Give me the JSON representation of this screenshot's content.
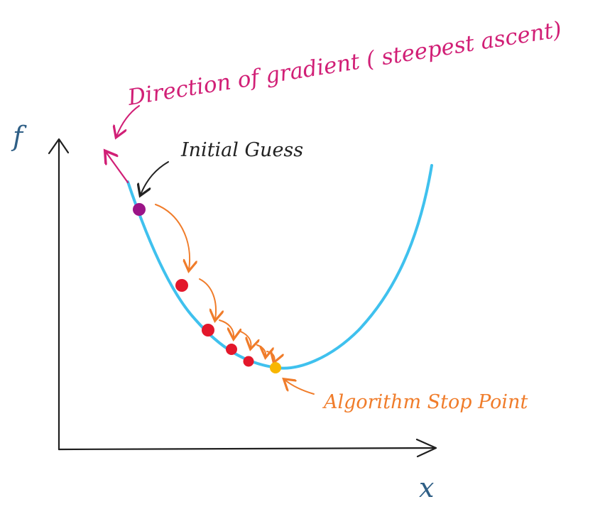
{
  "labels": {
    "gradient_direction": "Direction of gradient ( steepest ascent)",
    "initial_guess": "Initial Guess",
    "stop_point": "Algorithm Stop Point",
    "y_axis": "f",
    "x_axis": "x"
  },
  "colors": {
    "curve": "#3fc1ee",
    "axes": "#1f1f1f",
    "gradient": "#d11f76",
    "steps": "#f07c2a",
    "initial_point": "#9b1487",
    "step_points": "#e3172b",
    "stop_point": "#f8b600",
    "axis_labels": "#2f5f86",
    "annotation_dark": "#222222"
  },
  "descent_steps": 5
}
